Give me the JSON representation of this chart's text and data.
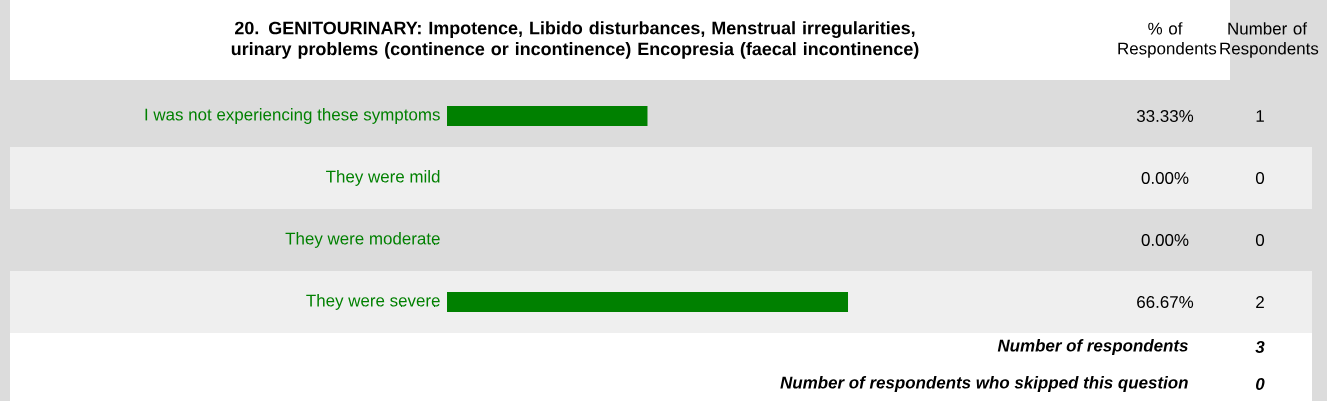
{
  "chart_data": {
    "type": "bar",
    "orientation": "horizontal",
    "title": "20. GENITOURINARY: Impotence, Libido disturbances, Menstrual irregularities, urinary problems (continence or incontinence) Encopresia (faecal incontinence)",
    "categories": [
      "I was not experiencing these symptoms",
      "They were mild",
      "They were moderate",
      "They were severe"
    ],
    "values": [
      33.33,
      0,
      0,
      66.67
    ],
    "value_labels": [
      "33.33%",
      "0.00%",
      "0.00%",
      "66.67%"
    ],
    "color": "#008000",
    "tick_labels": "y",
    "annotations": [
      "% of Respondents",
      "Number of Respondents",
      "1",
      "0",
      "0",
      "2",
      "Number of respondents",
      "3",
      "Number of respondents who skipped this question",
      "0"
    ]
  }
}
